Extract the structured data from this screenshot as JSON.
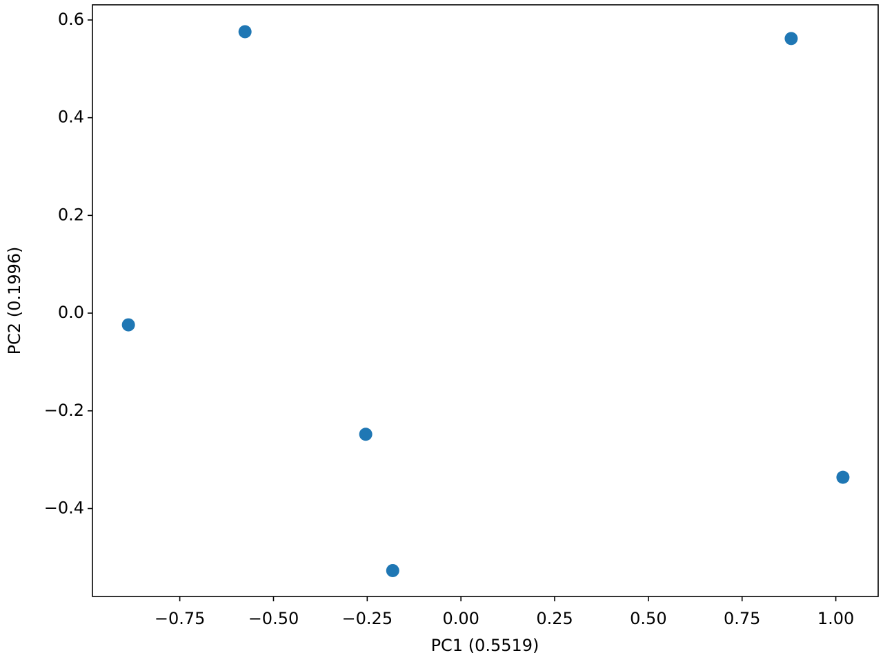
{
  "chart_data": {
    "type": "scatter",
    "x_label": "PC1 (0.5519)",
    "y_label": "PC2 (0.1996)",
    "x": [
      -0.576,
      0.881,
      -0.887,
      -0.254,
      1.019,
      -0.182
    ],
    "values": [
      0.576,
      0.562,
      -0.024,
      -0.248,
      -0.336,
      -0.527
    ],
    "color": "#1f77b4",
    "xlim": [
      -0.983,
      1.113
    ],
    "ylim": [
      -0.58,
      0.631
    ],
    "xticks": [
      {
        "value": -0.75,
        "label": "−0.75"
      },
      {
        "value": -0.5,
        "label": "−0.50"
      },
      {
        "value": -0.25,
        "label": "−0.25"
      },
      {
        "value": 0,
        "label": "0.00"
      },
      {
        "value": 0.25,
        "label": "0.25"
      },
      {
        "value": 0.5,
        "label": "0.50"
      },
      {
        "value": 0.75,
        "label": "0.75"
      },
      {
        "value": 1,
        "label": "1.00"
      }
    ],
    "yticks": [
      {
        "value": -0.4,
        "label": "−0.4"
      },
      {
        "value": -0.2,
        "label": "−0.2"
      },
      {
        "value": 0,
        "label": "0.0"
      },
      0.2,
      0.4,
      0.6
    ],
    "grid": false
  }
}
